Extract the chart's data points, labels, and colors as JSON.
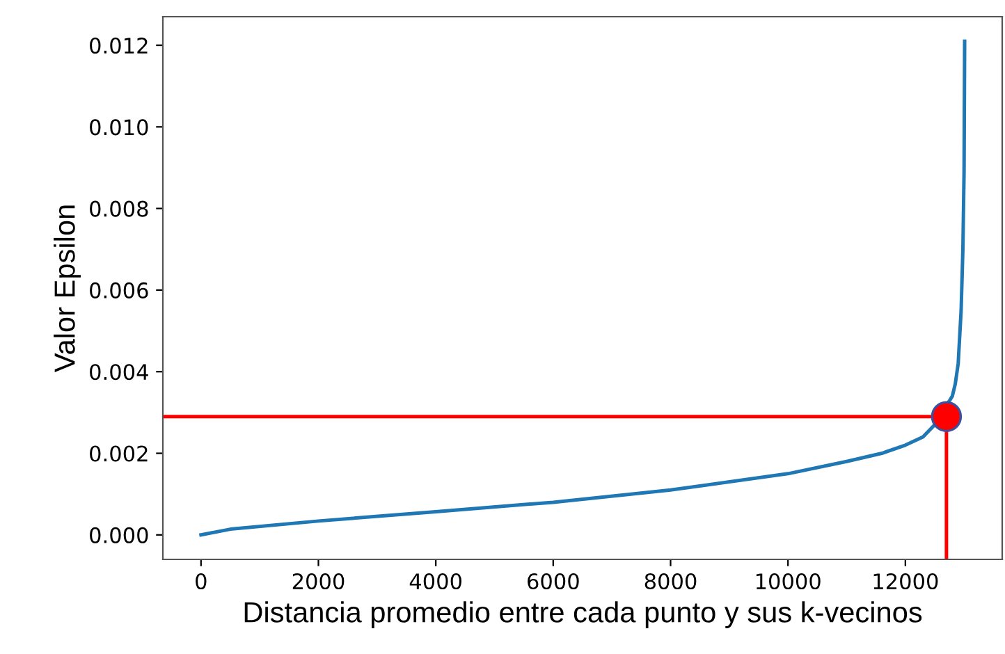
{
  "chart_data": {
    "type": "line",
    "xlabel": "Distancia promedio entre cada punto y sus k-vecinos",
    "ylabel": "Valor Epsilon",
    "xlim": [
      -650,
      13650
    ],
    "ylim": [
      -0.0006,
      0.0127
    ],
    "xticks": [
      0,
      2000,
      4000,
      6000,
      8000,
      10000,
      12000
    ],
    "yticks": [
      {
        "value": 0,
        "label": "0.000"
      },
      {
        "value": 0.002,
        "label": "0.002"
      },
      {
        "value": 0.004,
        "label": "0.004"
      },
      {
        "value": 0.006,
        "label": "0.006"
      },
      {
        "value": 0.008,
        "label": "0.008"
      },
      {
        "value": 0.01,
        "label": "0.010"
      },
      {
        "value": 0.012,
        "label": "0.012"
      }
    ],
    "grid": false,
    "series": [
      {
        "color": "#1f77b4",
        "x": [
          0,
          500,
          2000,
          4000,
          6000,
          8000,
          10000,
          11000,
          11600,
          12000,
          12300,
          12500,
          12800,
          12850,
          12900,
          12950,
          12980,
          13000,
          13010
        ],
        "values": [
          0.0,
          0.00014,
          0.00034,
          0.00057,
          0.0008,
          0.0011,
          0.0015,
          0.0018,
          0.002,
          0.0022,
          0.0024,
          0.0027,
          0.0034,
          0.0037,
          0.0042,
          0.0055,
          0.007,
          0.0089,
          0.0121
        ]
      },
      {
        "type": "line",
        "color": "#ff0000",
        "x": [
          -650,
          12700
        ],
        "values": [
          0.0029,
          0.0029
        ]
      },
      {
        "type": "line",
        "color": "#ff0000",
        "x": [
          12700,
          12700
        ],
        "values": [
          -0.0006,
          0.0029
        ]
      },
      {
        "type": "scatter",
        "color": "#ff0000",
        "x": [
          12700
        ],
        "values": [
          0.0029
        ]
      }
    ]
  }
}
